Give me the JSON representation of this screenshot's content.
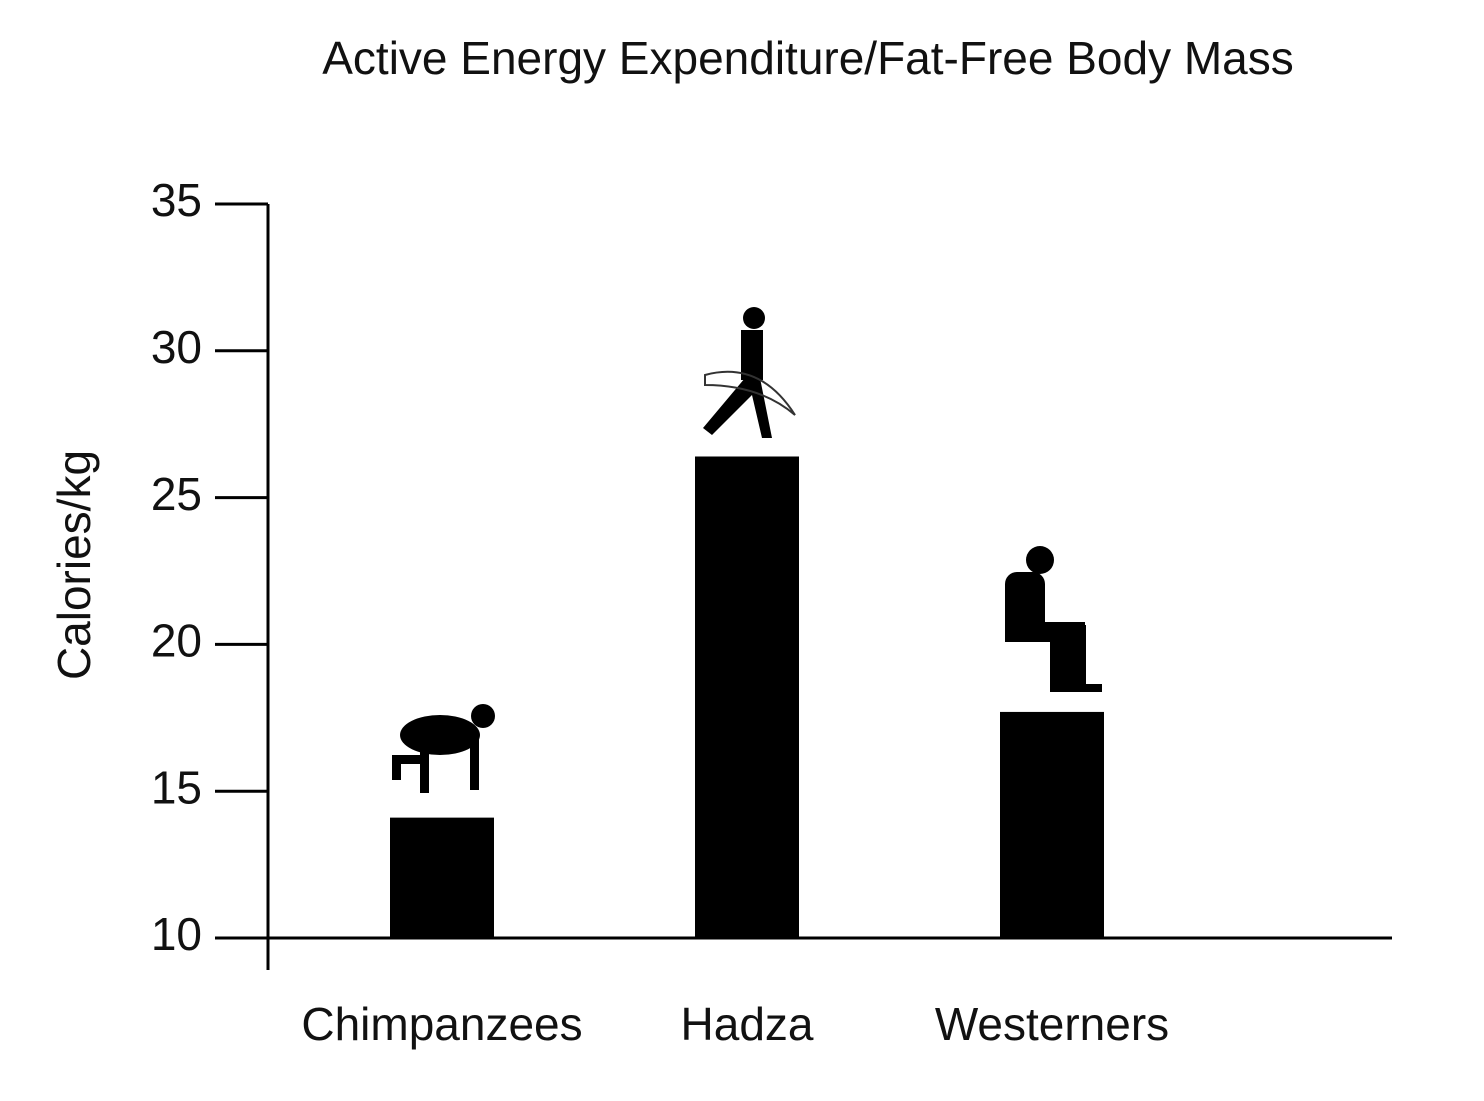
{
  "chart_data": {
    "type": "bar",
    "title": "Active Energy Expenditure/Fat-Free Body Mass",
    "y_label": "Calories/kg",
    "categories": [
      "Chimpanzees",
      "Hadza",
      "Westerners"
    ],
    "values": [
      14.1,
      26.4,
      17.7
    ],
    "color": "#000000",
    "ylim": [
      10,
      35
    ],
    "yticks": [
      10,
      15,
      20,
      25,
      30,
      35
    ],
    "grid": false
  }
}
